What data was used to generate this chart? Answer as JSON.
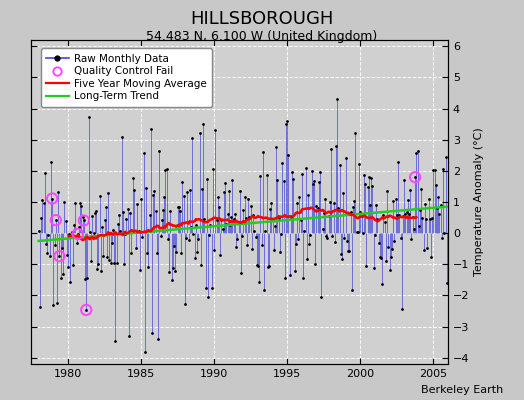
{
  "title": "HILLSBOROUGH",
  "subtitle": "54.483 N, 6.100 W (United Kingdom)",
  "ylabel": "Temperature Anomaly (°C)",
  "credit": "Berkeley Earth",
  "xlim": [
    1977.5,
    2006.0
  ],
  "ylim": [
    -4.2,
    6.2
  ],
  "yticks": [
    -4,
    -3,
    -2,
    -1,
    0,
    1,
    2,
    3,
    4,
    5,
    6
  ],
  "xticks": [
    1980,
    1985,
    1990,
    1995,
    2000,
    2005
  ],
  "bg_color": "#c8c8c8",
  "plot_bg_color": "#d0d0d0",
  "grid_color": "#ffffff",
  "raw_color": "#4444dd",
  "ma_color": "#ff0000",
  "trend_color": "#22cc22",
  "dot_color": "#000000",
  "qc_color": "#ff44ff",
  "title_fontsize": 13,
  "subtitle_fontsize": 9,
  "tick_fontsize": 8,
  "ylabel_fontsize": 8,
  "credit_fontsize": 8,
  "legend_fontsize": 7.5
}
